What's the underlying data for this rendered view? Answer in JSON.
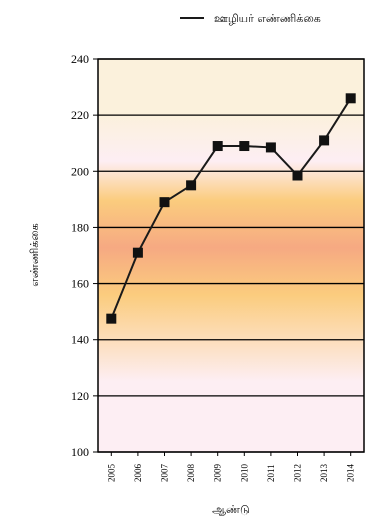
{
  "chart_data": {
    "type": "line",
    "title": "",
    "xlabel": "ஆண்டு",
    "ylabel": "எண்ணிக்கை",
    "ylim": [
      100,
      240
    ],
    "yticks": [
      100,
      120,
      140,
      160,
      180,
      200,
      220,
      240
    ],
    "categories": [
      "2005",
      "2006",
      "2007",
      "2008",
      "2009",
      "2010",
      "2011",
      "2012",
      "2013",
      "2014"
    ],
    "series": [
      {
        "name": "ஊழியர் எண்ணிக்கை",
        "values": [
          147.5,
          171,
          189,
          195,
          209,
          209,
          208.5,
          198.5,
          211,
          226
        ],
        "color": "#1a1a1a",
        "marker": "square"
      }
    ],
    "grid": "horizontal",
    "legend": "top-right",
    "background_gradient": [
      "#fdeef3",
      "#fbcc7e",
      "#f6a982",
      "#fbcc7e",
      "#fbf1dc"
    ]
  }
}
